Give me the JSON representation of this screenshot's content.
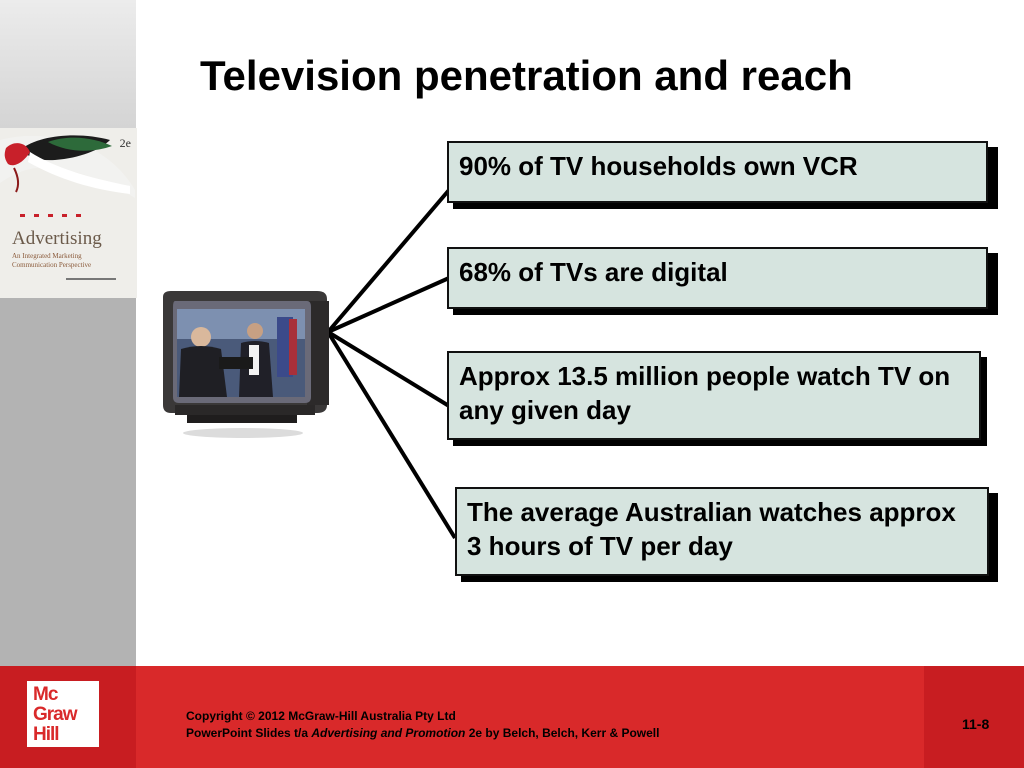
{
  "slide": {
    "title": "Television penetration and reach",
    "facts": [
      "90% of TV households own VCR",
      "68% of TVs are digital",
      "Approx 13.5 million people watch TV on any given day",
      "The average Australian watches approx 3 hours of TV per day"
    ]
  },
  "book_cover": {
    "edition": "2e",
    "title": "Advertising",
    "subtitle": "An Integrated Marketing Communication Perspective"
  },
  "footer": {
    "logo_lines": [
      "Mc",
      "Graw",
      "Hill"
    ],
    "copyright_line1": "Copyright © 2012 McGraw-Hill Australia Pty Ltd",
    "copyright_line2_prefix": "PowerPoint Slides t/a ",
    "copyright_line2_book": "Advertising and Promotion",
    "copyright_line2_suffix": " 2e by Belch, Belch, Kerr & Powell",
    "page_number": "11-8"
  },
  "colors": {
    "box_fill": "#d6e4df",
    "footer_red": "#d9292a",
    "sidebar_gray": "#b3b3b3"
  }
}
